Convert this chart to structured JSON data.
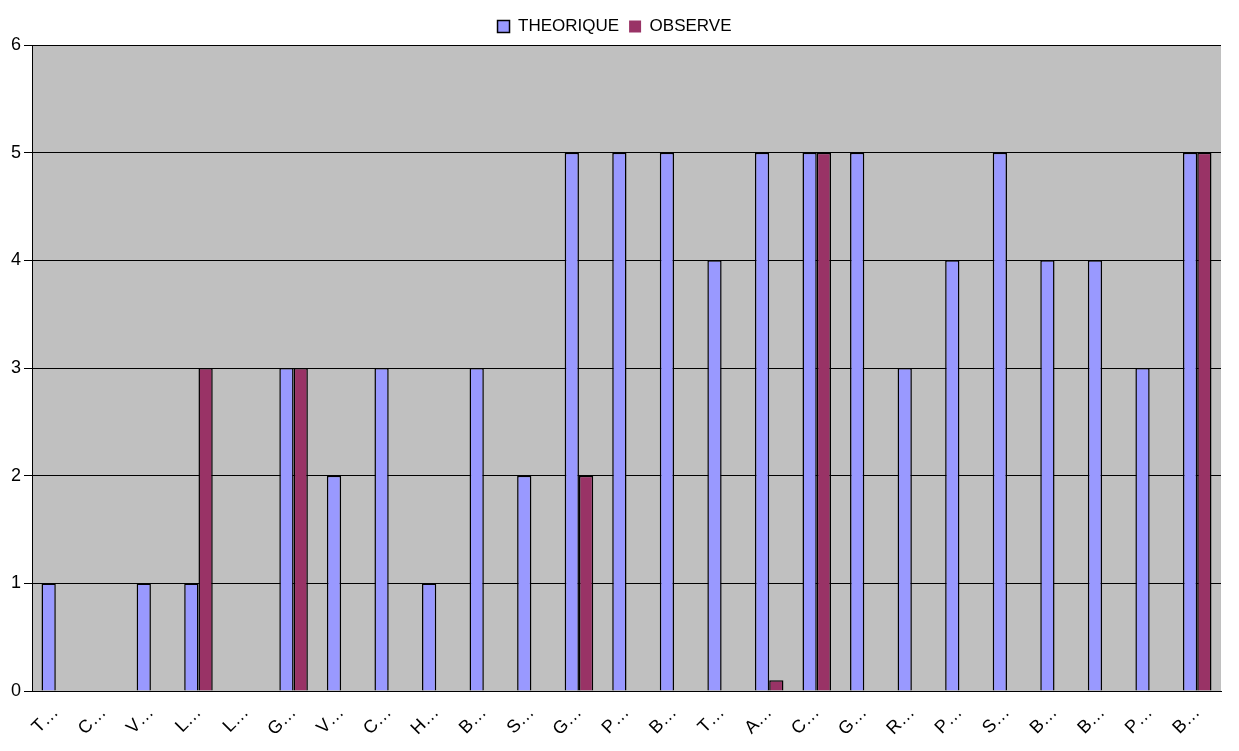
{
  "chart_data": {
    "type": "bar",
    "categories": [
      "T…",
      "C…",
      "V…",
      "L…",
      "L…",
      "G…",
      "V…",
      "C…",
      "H…",
      "B…",
      "S…",
      "G…",
      "P…",
      "B…",
      "T…",
      "A…",
      "C…",
      "G…",
      "R…",
      "P…",
      "S…",
      "B…",
      "B…",
      "P…",
      "B…"
    ],
    "series": [
      {
        "name": "THEORIQUE",
        "color": "#9999ff",
        "values": [
          1,
          0,
          1,
          1,
          0,
          3,
          2,
          3,
          1,
          3,
          2,
          5,
          5,
          5,
          4,
          5,
          5,
          5,
          3,
          4,
          5,
          4,
          4,
          3,
          5
        ]
      },
      {
        "name": "OBSERVE",
        "color": "#993366",
        "values": [
          0,
          0,
          0,
          3,
          0,
          3,
          0,
          0,
          0,
          0,
          0,
          2,
          0,
          0,
          0,
          0.1,
          5,
          0,
          0,
          0,
          0,
          0,
          0,
          0,
          5
        ]
      }
    ],
    "ylim": [
      0,
      6
    ],
    "yticks": [
      0,
      1,
      2,
      3,
      4,
      5,
      6
    ],
    "grid": "y",
    "legend": "top"
  }
}
